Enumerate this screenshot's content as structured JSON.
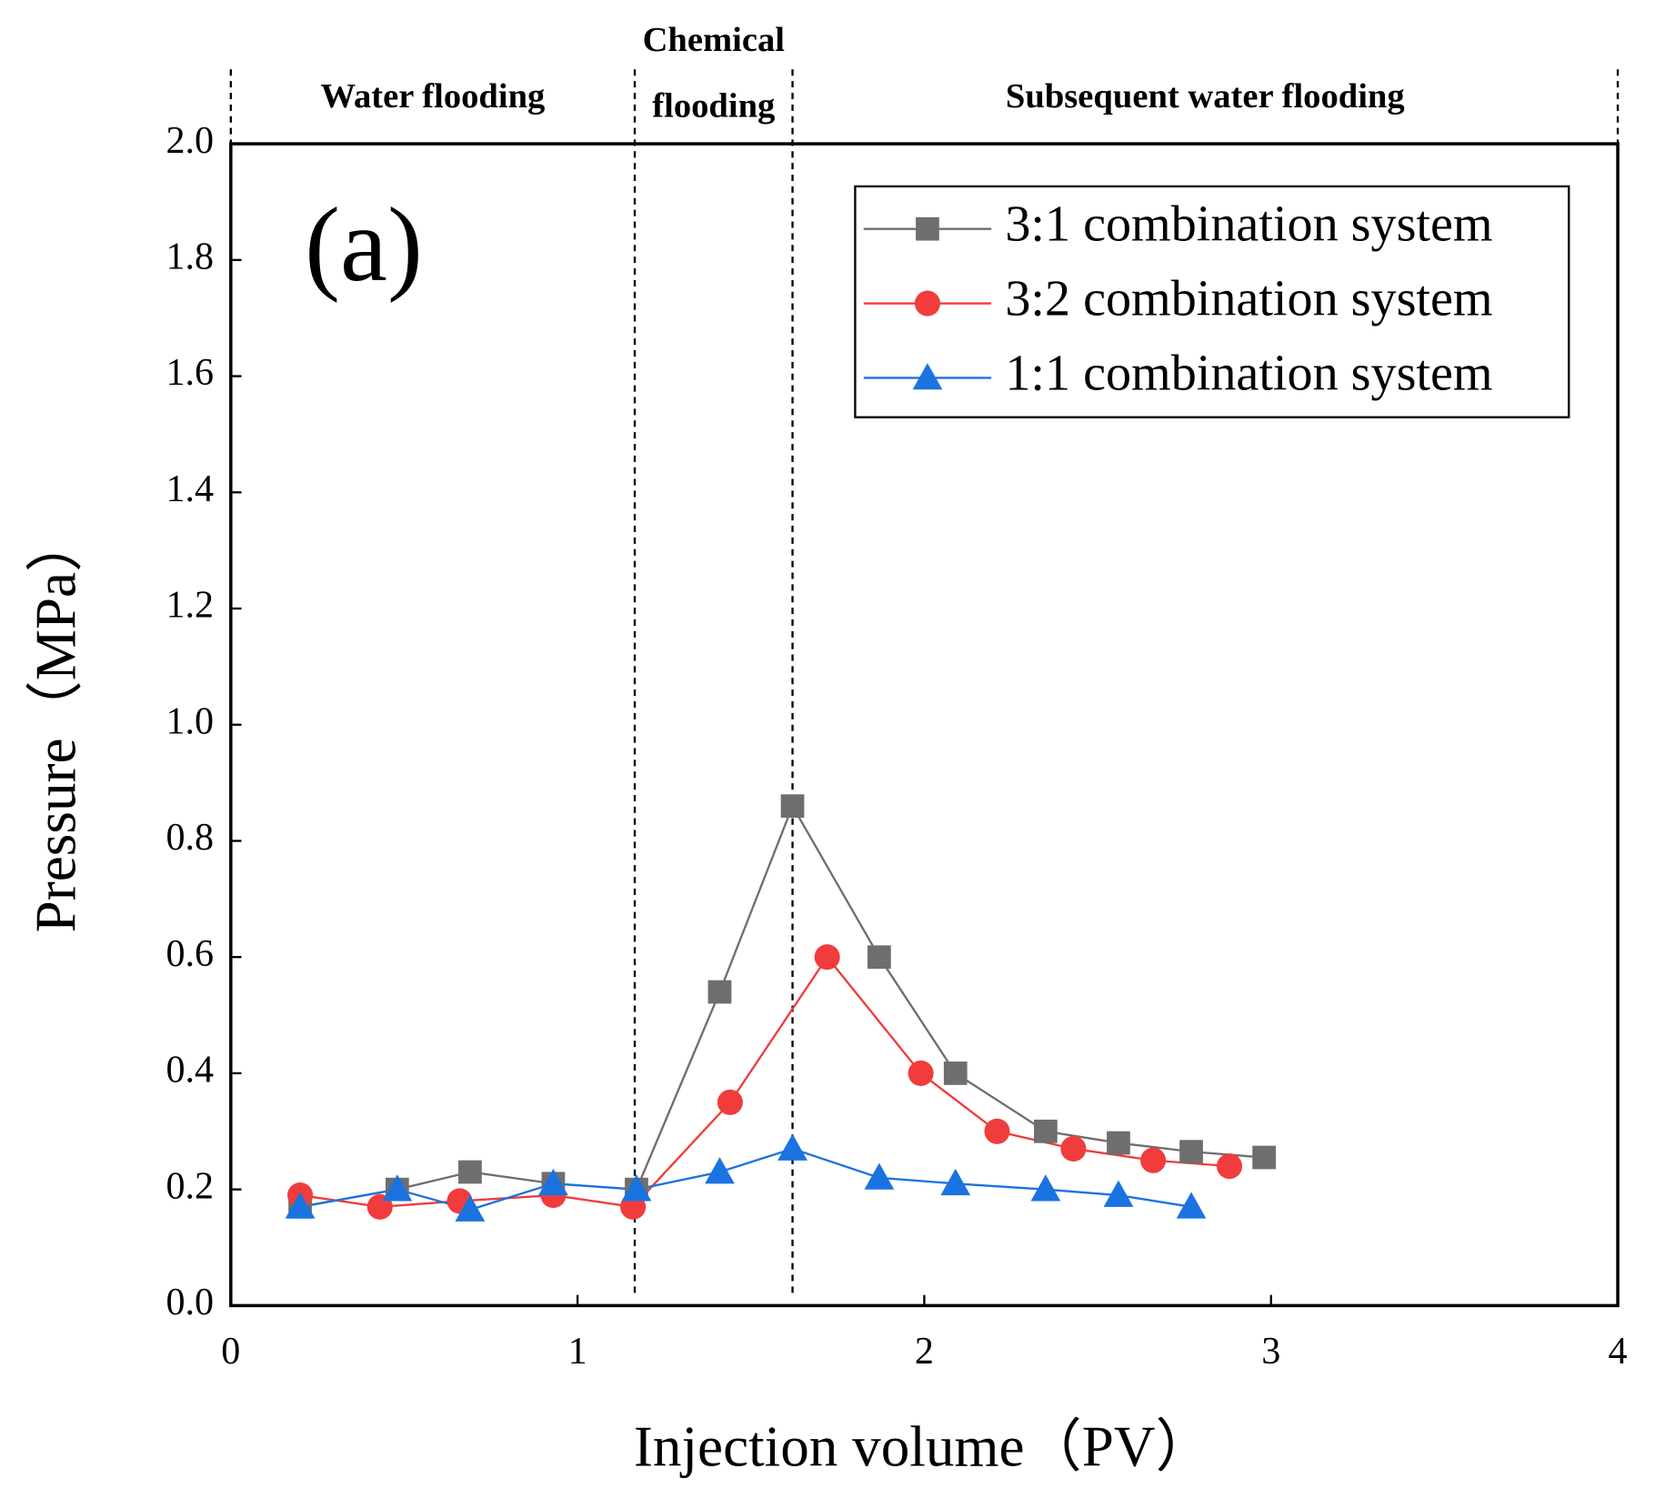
{
  "chart_data": {
    "type": "line",
    "annotation": "(a)",
    "xlabel": "Injection volume（PV）",
    "ylabel": "Pressure（MPa）",
    "xlim": [
      0,
      4
    ],
    "xticks": [
      0,
      1,
      2,
      3,
      4
    ],
    "ylim": [
      0,
      2
    ],
    "yticks": [
      {
        "value": 0,
        "label": "0.0"
      },
      0.2,
      0.4,
      0.6,
      0.8,
      {
        "value": 1,
        "label": "1.0"
      },
      1.2,
      1.4,
      1.6,
      1.8,
      {
        "value": 2,
        "label": "2.0"
      }
    ],
    "phase_boundaries": [
      0,
      1.165,
      1.62,
      4
    ],
    "phase_labels": [
      [
        "Water flooding"
      ],
      [
        "Chemical",
        "flooding"
      ],
      [
        "Subsequent water flooding"
      ]
    ],
    "legend": "upper right",
    "series": [
      {
        "name": "3:1 combination system",
        "color": "#6e6e6e",
        "marker": "square",
        "x": [
          0.2,
          0.48,
          0.69,
          0.93,
          1.17,
          1.41,
          1.62,
          1.87,
          2.09,
          2.35,
          2.56,
          2.77,
          2.98
        ],
        "values": [
          0.17,
          0.2,
          0.23,
          0.21,
          0.2,
          0.54,
          0.86,
          0.6,
          0.4,
          0.3,
          0.28,
          0.265,
          0.255
        ]
      },
      {
        "name": "3:2 combination system",
        "color": "#f03c3c",
        "marker": "circle",
        "x": [
          0.2,
          0.43,
          0.66,
          0.93,
          1.16,
          1.44,
          1.72,
          1.99,
          2.21,
          2.43,
          2.66,
          2.88
        ],
        "values": [
          0.19,
          0.17,
          0.18,
          0.19,
          0.17,
          0.35,
          0.6,
          0.4,
          0.3,
          0.27,
          0.25,
          0.24
        ]
      },
      {
        "name": "1:1 combination system",
        "color": "#1a73e0",
        "marker": "triangle",
        "x": [
          0.2,
          0.48,
          0.69,
          0.93,
          1.17,
          1.41,
          1.62,
          1.87,
          2.09,
          2.35,
          2.56,
          2.77
        ],
        "values": [
          0.17,
          0.2,
          0.165,
          0.21,
          0.2,
          0.23,
          0.27,
          0.22,
          0.21,
          0.2,
          0.19,
          0.17
        ]
      }
    ]
  }
}
